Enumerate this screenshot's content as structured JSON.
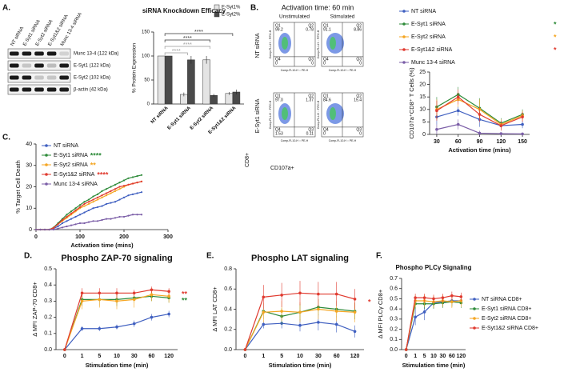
{
  "chart_data": [
    {
      "type": "blot",
      "panel_label": "A.",
      "lanes": [
        "NT siRNA",
        "E-Syt1 siRNA",
        "E-Syt2 siRNA",
        "E-Syt1&2 siRNA",
        "Munc 13-4 siRNA"
      ],
      "bands": [
        "Munc 13-4 (122 kDa)",
        "E-Syt1 (122 kDa)",
        "E-Syt2 (102 kDa)",
        "β-actin (42 kDa)"
      ]
    },
    {
      "type": "bar",
      "title": "siRNA Knockdown Efficacy",
      "y_label": "% Protein Expression",
      "categories": [
        "NT siRNA",
        "E-Syt1 siRNA",
        "E-Syt2 siRNA",
        "E-Syt1&2 siRNA"
      ],
      "series": [
        {
          "name": "E-Syt1%",
          "color": "#e4e4e4",
          "values": [
            100,
            20,
            92,
            22
          ],
          "errors": [
            0,
            4,
            8,
            3
          ]
        },
        {
          "name": "E-Syt2%",
          "color": "#4a4a4a",
          "values": [
            100,
            92,
            18,
            25
          ],
          "errors": [
            0,
            8,
            3,
            5
          ]
        }
      ],
      "ylim": [
        0,
        150
      ],
      "yticks": [
        0,
        50,
        100,
        150
      ],
      "annotations": [
        "****",
        "****",
        "****",
        "****"
      ]
    },
    {
      "type": "flow",
      "panel_label": "B.",
      "title": "Activation time: 60 min",
      "columns": [
        "Unstimulated",
        "Stimulated"
      ],
      "rows": [
        "NT siRNA",
        "E-Syt1 siRNA"
      ],
      "y_label": "CD8+",
      "x_label": "CD107a+",
      "plot_x_label": "Comp-FL10-H :: PE-H",
      "plot_y_label": "Comp-FL1-H :: FITC-H",
      "quadrant_names": [
        "Q1",
        "Q2",
        "Q4",
        "Q3"
      ],
      "plots": [
        {
          "values": [
            99.2,
            0.78,
            0,
            0
          ]
        },
        {
          "values": [
            91.1,
            8.86,
            0,
            0
          ]
        },
        {
          "values": [
            97,
            1.37,
            1.53,
            0.11
          ],
          "value_labels": [
            "97.0",
            "1.37",
            "1.53",
            "0.11"
          ]
        },
        {
          "values": [
            84.6,
            15.4,
            0,
            0
          ]
        }
      ]
    },
    {
      "type": "line",
      "y_label": "CD107a⁺CD8⁺ T Cells (%)",
      "x_label": "Activation time (mins)",
      "x": [
        30,
        60,
        90,
        120,
        150
      ],
      "xlim": [
        20,
        160
      ],
      "xticks": [
        30,
        60,
        90,
        120,
        150
      ],
      "ylim": [
        0,
        25
      ],
      "yticks": [
        0,
        5,
        10,
        15,
        20,
        25
      ],
      "series": [
        {
          "name": "NT siRNA",
          "color": "#3f5fc0",
          "values": [
            7,
            9.5,
            6,
            3.5,
            4
          ],
          "errors": [
            3,
            2,
            3,
            1.5,
            1.5
          ]
        },
        {
          "name": "E-Syt1 siRNA",
          "color": "#2e8b3a",
          "values": [
            11,
            16,
            10.5,
            4.5,
            8
          ],
          "errors": [
            4,
            3,
            4,
            2,
            2
          ],
          "significance": "*"
        },
        {
          "name": "E-Syt2 siRNA",
          "color": "#f5a623",
          "values": [
            10,
            14,
            10,
            4,
            7.5
          ],
          "errors": [
            4,
            3,
            4,
            2,
            2
          ],
          "significance": "*"
        },
        {
          "name": "E-Syt1&2 siRNA",
          "color": "#e03a2f",
          "values": [
            9.5,
            15,
            8,
            3.5,
            7
          ],
          "errors": [
            4,
            3,
            3,
            2,
            2
          ],
          "significance": "*"
        },
        {
          "name": "Munc 13-4 siRNA",
          "color": "#7b5ea7",
          "values": [
            2,
            4,
            0.5,
            0.3,
            0.2
          ],
          "errors": [
            2,
            2,
            1,
            0.5,
            0.5
          ]
        }
      ]
    },
    {
      "type": "line",
      "panel_label": "C.",
      "y_label": "% Target Cell Death",
      "x_label": "Activation time (mins)",
      "x": [
        0,
        10,
        20,
        30,
        40,
        50,
        60,
        70,
        80,
        90,
        100,
        110,
        120,
        130,
        140,
        150,
        160,
        170,
        180,
        190,
        200,
        210,
        220,
        230,
        240
      ],
      "xlim": [
        0,
        300
      ],
      "xticks": [
        0,
        100,
        200,
        300
      ],
      "ylim": [
        0,
        40
      ],
      "yticks": [
        0,
        10,
        20,
        30,
        40
      ],
      "series": [
        {
          "name": "NT siRNA",
          "color": "#3f5fc0",
          "values": [
            0,
            0,
            0,
            0,
            0.5,
            1.5,
            3,
            4,
            5,
            6,
            7,
            8,
            9,
            10,
            10.5,
            11,
            12,
            12.5,
            13,
            14,
            15,
            16,
            16.5,
            17,
            17.5
          ]
        },
        {
          "name": "E-Syt1 siRNA",
          "color": "#2e8b3a",
          "values": [
            0,
            0,
            0,
            0,
            1,
            3,
            5,
            7,
            8.5,
            10,
            11.5,
            13,
            14,
            15.5,
            16.5,
            18,
            19,
            20,
            21,
            22,
            23,
            24,
            24.5,
            25,
            25.5
          ],
          "significance": "****"
        },
        {
          "name": "E-Syt2 siRNA",
          "color": "#f5a623",
          "values": [
            0,
            0,
            0,
            0,
            0.8,
            2.5,
            4,
            5.5,
            7,
            8.5,
            10,
            11,
            12,
            13,
            14,
            15,
            16,
            17,
            18,
            19,
            20,
            21,
            21.5,
            22,
            22.5
          ],
          "significance": "**"
        },
        {
          "name": "E-Syt1&2 siRNA",
          "color": "#e03a2f",
          "values": [
            0,
            0,
            0,
            0,
            0.8,
            2.5,
            4.5,
            6,
            7.5,
            9,
            10.5,
            12,
            13,
            14,
            15,
            16,
            17,
            18,
            19,
            20,
            20.5,
            21,
            21.5,
            22,
            22.5
          ],
          "significance": "****"
        },
        {
          "name": "Munc 13-4 siRNA",
          "color": "#7b5ea7",
          "values": [
            0,
            0,
            0,
            0,
            0,
            0.5,
            1,
            1.5,
            2,
            2.5,
            3,
            3,
            3.5,
            4,
            4,
            4.5,
            5,
            5,
            5.5,
            6,
            6,
            6.5,
            7,
            7,
            7
          ]
        }
      ]
    },
    {
      "type": "line",
      "panel_label": "D.",
      "title": "Phospho ZAP-70 signaling",
      "y_label": "Δ MFI ZAP-70 CD8+",
      "x_label": "Stimulation time (min)",
      "categories": [
        "0",
        "1",
        "5",
        "10",
        "30",
        "60",
        "120"
      ],
      "ylim": [
        0,
        0.5
      ],
      "yticks": [
        {
          "value": 0,
          "label": "0.0"
        },
        0.1,
        0.2,
        0.3,
        0.4,
        0.5
      ],
      "series": [
        {
          "color": "#3f5fc0",
          "values": [
            0,
            0.13,
            0.13,
            0.14,
            0.16,
            0.2,
            0.22
          ],
          "errors": [
            0,
            0.015,
            0.015,
            0.015,
            0.02,
            0.02,
            0.02
          ]
        },
        {
          "color": "#2e8b3a",
          "values": [
            0,
            0.31,
            0.31,
            0.31,
            0.32,
            0.33,
            0.32
          ],
          "errors": [
            0,
            0.04,
            0.04,
            0.04,
            0.03,
            0.03,
            0.03
          ],
          "significance": "**"
        },
        {
          "color": "#f5a623",
          "values": [
            0,
            0.3,
            0.31,
            0.3,
            0.31,
            0.34,
            0.33
          ],
          "errors": [
            0,
            0.05,
            0.05,
            0.05,
            0.05,
            0.04,
            0.04
          ]
        },
        {
          "color": "#e03a2f",
          "values": [
            0,
            0.35,
            0.35,
            0.35,
            0.35,
            0.37,
            0.36
          ],
          "errors": [
            0,
            0.03,
            0.03,
            0.03,
            0.02,
            0.02,
            0.02
          ],
          "significance": "**"
        }
      ]
    },
    {
      "type": "line",
      "panel_label": "E.",
      "title": "Phospho LAT signaling",
      "y_label": "Δ MFI LAT CD8+",
      "x_label": "Stimulation time (min)",
      "categories": [
        "0",
        "1",
        "5",
        "10",
        "30",
        "60",
        "120"
      ],
      "ylim": [
        0,
        0.8
      ],
      "yticks": [
        {
          "value": 0,
          "label": "0.0"
        },
        0.2,
        0.4,
        0.6,
        0.8
      ],
      "series": [
        {
          "color": "#3f5fc0",
          "values": [
            0,
            0.25,
            0.26,
            0.24,
            0.27,
            0.25,
            0.18
          ],
          "errors": [
            0,
            0.04,
            0.05,
            0.06,
            0.08,
            0.08,
            0.06
          ]
        },
        {
          "color": "#2e8b3a",
          "values": [
            0,
            0.38,
            0.33,
            0.37,
            0.42,
            0.4,
            0.38
          ],
          "errors": [
            0,
            0.08,
            0.08,
            0.08,
            0.08,
            0.08,
            0.08
          ]
        },
        {
          "color": "#f5a623",
          "values": [
            0,
            0.37,
            0.38,
            0.37,
            0.4,
            0.38,
            0.37
          ],
          "errors": [
            0,
            0.1,
            0.1,
            0.1,
            0.1,
            0.1,
            0.1
          ]
        },
        {
          "color": "#e03a2f",
          "values": [
            0,
            0.52,
            0.54,
            0.56,
            0.55,
            0.55,
            0.5
          ],
          "errors": [
            0,
            0.12,
            0.12,
            0.12,
            0.12,
            0.12,
            0.1
          ],
          "significance": "*"
        }
      ]
    },
    {
      "type": "line",
      "panel_label": "F.",
      "title": "Phospho PLCγ Signaling",
      "y_label": "Δ MFI PLCγ CD8+",
      "x_label": "Stimulation time (min)",
      "categories": [
        "0",
        "1",
        "5",
        "10",
        "30",
        "60",
        "120"
      ],
      "ylim": [
        0,
        0.7
      ],
      "yticks": [
        {
          "value": 0,
          "label": "0.0"
        },
        0.1,
        0.2,
        0.3,
        0.4,
        0.5,
        0.6,
        0.7
      ],
      "series": [
        {
          "name": "NT siRNA CD8+",
          "color": "#3f5fc0",
          "values": [
            0,
            0.32,
            0.37,
            0.46,
            0.47,
            0.48,
            0.48
          ],
          "errors": [
            0,
            0.08,
            0.08,
            0.05,
            0.05,
            0.05,
            0.05
          ]
        },
        {
          "name": "E-Syt1 siRNA CD8+",
          "color": "#2e8b3a",
          "values": [
            0,
            0.45,
            0.45,
            0.45,
            0.46,
            0.47,
            0.46
          ],
          "errors": [
            0,
            0.05,
            0.05,
            0.05,
            0.05,
            0.05,
            0.05
          ]
        },
        {
          "name": "E-Syt2 siRNA CD8+",
          "color": "#f5a623",
          "values": [
            0,
            0.48,
            0.48,
            0.47,
            0.48,
            0.47,
            0.48
          ],
          "errors": [
            0,
            0.06,
            0.06,
            0.06,
            0.06,
            0.06,
            0.06
          ]
        },
        {
          "name": "E-Syt1&2 siRNA CD8+",
          "color": "#e03a2f",
          "values": [
            0,
            0.51,
            0.51,
            0.5,
            0.51,
            0.53,
            0.52
          ],
          "errors": [
            0,
            0.04,
            0.04,
            0.04,
            0.04,
            0.04,
            0.04
          ]
        }
      ]
    }
  ]
}
